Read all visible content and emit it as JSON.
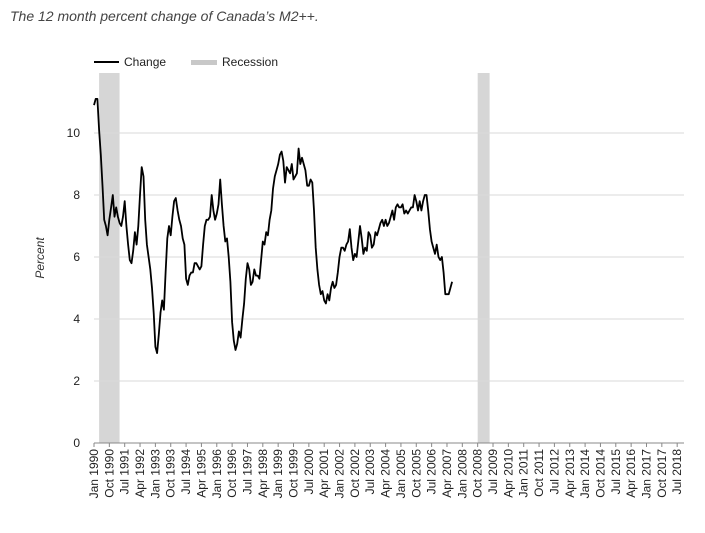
{
  "title": "The 12 month percent change of Canada’s M2++.",
  "chart_data": {
    "type": "line",
    "title": "The 12 month percent change of Canada’s M2++.",
    "ylabel": "Percent",
    "xlabel": "",
    "ylim": [
      0,
      11
    ],
    "yticks": [
      0,
      2,
      4,
      6,
      8,
      10
    ],
    "xlim": [
      "1990-01",
      "2018-11"
    ],
    "grid": "horizontal",
    "legend_position": "top-left",
    "xtick_labels": [
      "Jan 1990",
      "Oct 1990",
      "Jul 1991",
      "Apr 1992",
      "Jan 1993",
      "Oct 1993",
      "Jul 1994",
      "Apr 1995",
      "Jan 1996",
      "Oct 1996",
      "Jul 1997",
      "Apr 1998",
      "Jan 1999",
      "Oct 1999",
      "Jul 2000",
      "Apr 2001",
      "Jan 2002",
      "Oct 2002",
      "Jul 2003",
      "Apr 2004",
      "Jan 2005",
      "Oct 2005",
      "Jul 2006",
      "Apr 2007",
      "Jan 2008",
      "Oct 2008",
      "Jul 2009",
      "Apr 2010",
      "Jan 2011",
      "Oct 2011",
      "Jul 2012",
      "Apr 2013",
      "Jan 2014",
      "Oct 2014",
      "Jul 2015",
      "Apr 2016",
      "Jan 2017",
      "Oct 2017",
      "Jul 2018"
    ],
    "recessions": [
      {
        "start": "1990-04",
        "end": "1991-04"
      },
      {
        "start": "2008-10",
        "end": "2009-05"
      }
    ],
    "series": [
      {
        "name": "Change",
        "color": "#000000",
        "points": [
          [
            "1990-01",
            10.9
          ],
          [
            "1990-02",
            11.1
          ],
          [
            "1990-03",
            11.1
          ],
          [
            "1990-04",
            10.1
          ],
          [
            "1990-05",
            9.3
          ],
          [
            "1990-06",
            8.3
          ],
          [
            "1990-07",
            7.2
          ],
          [
            "1990-08",
            7.0
          ],
          [
            "1990-09",
            6.7
          ],
          [
            "1990-10",
            7.2
          ],
          [
            "1990-11",
            7.6
          ],
          [
            "1990-12",
            8.0
          ],
          [
            "1991-01",
            7.3
          ],
          [
            "1991-02",
            7.6
          ],
          [
            "1991-03",
            7.3
          ],
          [
            "1991-04",
            7.1
          ],
          [
            "1991-05",
            7.0
          ],
          [
            "1991-06",
            7.3
          ],
          [
            "1991-07",
            7.8
          ],
          [
            "1991-08",
            7.0
          ],
          [
            "1991-09",
            6.4
          ],
          [
            "1991-10",
            5.9
          ],
          [
            "1991-11",
            5.8
          ],
          [
            "1991-12",
            6.2
          ],
          [
            "1992-01",
            6.8
          ],
          [
            "1992-02",
            6.4
          ],
          [
            "1992-03",
            7.0
          ],
          [
            "1992-04",
            8.0
          ],
          [
            "1992-05",
            8.9
          ],
          [
            "1992-06",
            8.6
          ],
          [
            "1992-07",
            7.2
          ],
          [
            "1992-08",
            6.4
          ],
          [
            "1992-09",
            6.0
          ],
          [
            "1992-10",
            5.6
          ],
          [
            "1992-11",
            5.0
          ],
          [
            "1992-12",
            4.2
          ],
          [
            "1993-01",
            3.1
          ],
          [
            "1993-02",
            2.9
          ],
          [
            "1993-03",
            3.5
          ],
          [
            "1993-04",
            4.2
          ],
          [
            "1993-05",
            4.6
          ],
          [
            "1993-06",
            4.3
          ],
          [
            "1993-07",
            5.5
          ],
          [
            "1993-08",
            6.6
          ],
          [
            "1993-09",
            7.0
          ],
          [
            "1993-10",
            6.7
          ],
          [
            "1993-11",
            7.3
          ],
          [
            "1993-12",
            7.8
          ],
          [
            "1994-01",
            7.9
          ],
          [
            "1994-02",
            7.5
          ],
          [
            "1994-03",
            7.2
          ],
          [
            "1994-04",
            7.0
          ],
          [
            "1994-05",
            6.6
          ],
          [
            "1994-06",
            6.4
          ],
          [
            "1994-07",
            5.3
          ],
          [
            "1994-08",
            5.1
          ],
          [
            "1994-09",
            5.4
          ],
          [
            "1994-10",
            5.5
          ],
          [
            "1994-11",
            5.5
          ],
          [
            "1994-12",
            5.8
          ],
          [
            "1995-01",
            5.8
          ],
          [
            "1995-02",
            5.7
          ],
          [
            "1995-03",
            5.6
          ],
          [
            "1995-04",
            5.7
          ],
          [
            "1995-05",
            6.4
          ],
          [
            "1995-06",
            7.0
          ],
          [
            "1995-07",
            7.2
          ],
          [
            "1995-08",
            7.2
          ],
          [
            "1995-09",
            7.3
          ],
          [
            "1995-10",
            8.0
          ],
          [
            "1995-11",
            7.5
          ],
          [
            "1995-12",
            7.2
          ],
          [
            "1996-01",
            7.4
          ],
          [
            "1996-02",
            7.7
          ],
          [
            "1996-03",
            8.5
          ],
          [
            "1996-04",
            7.7
          ],
          [
            "1996-05",
            7.0
          ],
          [
            "1996-06",
            6.5
          ],
          [
            "1996-07",
            6.6
          ],
          [
            "1996-08",
            6.0
          ],
          [
            "1996-09",
            5.2
          ],
          [
            "1996-10",
            3.9
          ],
          [
            "1996-11",
            3.3
          ],
          [
            "1996-12",
            3.0
          ],
          [
            "1997-01",
            3.2
          ],
          [
            "1997-02",
            3.6
          ],
          [
            "1997-03",
            3.4
          ],
          [
            "1997-04",
            4.0
          ],
          [
            "1997-05",
            4.5
          ],
          [
            "1997-06",
            5.3
          ],
          [
            "1997-07",
            5.8
          ],
          [
            "1997-08",
            5.6
          ],
          [
            "1997-09",
            5.1
          ],
          [
            "1997-10",
            5.2
          ],
          [
            "1997-11",
            5.6
          ],
          [
            "1997-12",
            5.4
          ],
          [
            "1998-01",
            5.4
          ],
          [
            "1998-02",
            5.3
          ],
          [
            "1998-03",
            5.9
          ],
          [
            "1998-04",
            6.5
          ],
          [
            "1998-05",
            6.4
          ],
          [
            "1998-06",
            6.8
          ],
          [
            "1998-07",
            6.7
          ],
          [
            "1998-08",
            7.2
          ],
          [
            "1998-09",
            7.5
          ],
          [
            "1998-10",
            8.2
          ],
          [
            "1998-11",
            8.6
          ],
          [
            "1998-12",
            8.8
          ],
          [
            "1999-01",
            9.0
          ],
          [
            "1999-02",
            9.3
          ],
          [
            "1999-03",
            9.4
          ],
          [
            "1999-04",
            9.1
          ],
          [
            "1999-05",
            8.4
          ],
          [
            "1999-06",
            8.9
          ],
          [
            "1999-07",
            8.8
          ],
          [
            "1999-08",
            8.7
          ],
          [
            "1999-09",
            9.0
          ],
          [
            "1999-10",
            8.5
          ],
          [
            "1999-11",
            8.6
          ],
          [
            "1999-12",
            8.7
          ],
          [
            "2000-01",
            9.5
          ],
          [
            "2000-02",
            9.0
          ],
          [
            "2000-03",
            9.2
          ],
          [
            "2000-04",
            9.0
          ],
          [
            "2000-05",
            8.8
          ],
          [
            "2000-06",
            8.3
          ],
          [
            "2000-07",
            8.3
          ],
          [
            "2000-08",
            8.5
          ],
          [
            "2000-09",
            8.4
          ],
          [
            "2000-10",
            7.5
          ],
          [
            "2000-11",
            6.3
          ],
          [
            "2000-12",
            5.6
          ],
          [
            "2001-01",
            5.1
          ],
          [
            "2001-02",
            4.8
          ],
          [
            "2001-03",
            4.9
          ],
          [
            "2001-04",
            4.6
          ],
          [
            "2001-05",
            4.5
          ],
          [
            "2001-06",
            4.8
          ],
          [
            "2001-07",
            4.6
          ],
          [
            "2001-08",
            5.0
          ],
          [
            "2001-09",
            5.2
          ],
          [
            "2001-10",
            5.0
          ],
          [
            "2001-11",
            5.1
          ],
          [
            "2001-12",
            5.5
          ],
          [
            "2002-01",
            6.0
          ],
          [
            "2002-02",
            6.3
          ],
          [
            "2002-03",
            6.3
          ],
          [
            "2002-04",
            6.2
          ],
          [
            "2002-05",
            6.4
          ],
          [
            "2002-06",
            6.5
          ],
          [
            "2002-07",
            6.9
          ],
          [
            "2002-08",
            6.3
          ],
          [
            "2002-09",
            5.9
          ],
          [
            "2002-10",
            6.1
          ],
          [
            "2002-11",
            6.0
          ],
          [
            "2002-12",
            6.5
          ],
          [
            "2003-01",
            7.0
          ],
          [
            "2003-02",
            6.6
          ],
          [
            "2003-03",
            6.1
          ],
          [
            "2003-04",
            6.3
          ],
          [
            "2003-05",
            6.2
          ],
          [
            "2003-06",
            6.8
          ],
          [
            "2003-07",
            6.7
          ],
          [
            "2003-08",
            6.3
          ],
          [
            "2003-09",
            6.4
          ],
          [
            "2003-10",
            6.8
          ],
          [
            "2003-11",
            6.7
          ],
          [
            "2003-12",
            6.9
          ],
          [
            "2004-01",
            7.1
          ],
          [
            "2004-02",
            7.2
          ],
          [
            "2004-03",
            7.0
          ],
          [
            "2004-04",
            7.2
          ],
          [
            "2004-05",
            7.0
          ],
          [
            "2004-06",
            7.1
          ],
          [
            "2004-07",
            7.3
          ],
          [
            "2004-08",
            7.5
          ],
          [
            "2004-09",
            7.2
          ],
          [
            "2004-10",
            7.6
          ],
          [
            "2004-11",
            7.7
          ],
          [
            "2004-12",
            7.6
          ],
          [
            "2005-01",
            7.6
          ],
          [
            "2005-02",
            7.7
          ],
          [
            "2005-03",
            7.4
          ],
          [
            "2005-04",
            7.5
          ],
          [
            "2005-05",
            7.4
          ],
          [
            "2005-06",
            7.5
          ],
          [
            "2005-07",
            7.6
          ],
          [
            "2005-08",
            7.6
          ],
          [
            "2005-09",
            8.0
          ],
          [
            "2005-10",
            7.8
          ],
          [
            "2005-11",
            7.5
          ],
          [
            "2005-12",
            7.8
          ],
          [
            "2006-01",
            7.5
          ],
          [
            "2006-02",
            7.8
          ],
          [
            "2006-03",
            8.0
          ],
          [
            "2006-04",
            8.0
          ],
          [
            "2006-05",
            7.5
          ],
          [
            "2006-06",
            6.9
          ],
          [
            "2006-07",
            6.5
          ],
          [
            "2006-08",
            6.3
          ],
          [
            "2006-09",
            6.1
          ],
          [
            "2006-10",
            6.4
          ],
          [
            "2006-11",
            6.0
          ],
          [
            "2006-12",
            5.9
          ],
          [
            "2007-01",
            6.0
          ],
          [
            "2007-02",
            5.5
          ],
          [
            "2007-03",
            4.8
          ],
          [
            "2007-04",
            4.8
          ],
          [
            "2007-05",
            4.8
          ],
          [
            "2007-06",
            5.0
          ],
          [
            "2007-07",
            5.2
          ]
        ]
      }
    ]
  },
  "legend": {
    "change_label": "Change",
    "recession_label": "Recession"
  },
  "colors": {
    "line": "#000000",
    "recession": "#d6d6d6",
    "grid": "#d9d9d9",
    "baseline": "#888888"
  }
}
